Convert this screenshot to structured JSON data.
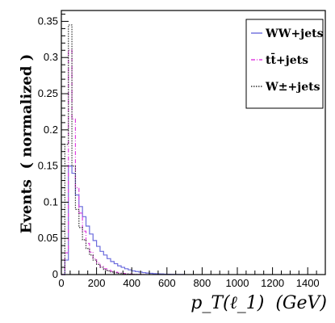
{
  "chart_data": {
    "type": "line",
    "xlabel": "p_T(ℓ_1)  (GeV)",
    "ylabel": "Events  ( normalized )",
    "xlim": [
      0,
      1500
    ],
    "ylim": [
      0,
      0.365
    ],
    "x_ticks": [
      "0",
      "200",
      "400",
      "600",
      "800",
      "1000",
      "1200",
      "1400"
    ],
    "y_ticks": [
      "0",
      "0.05",
      "0.1",
      "0.15",
      "0.2",
      "0.25",
      "0.3",
      "0.35"
    ],
    "grid": false,
    "legend_position": "top-right",
    "bin_width": 20,
    "bin_start": 0,
    "series": [
      {
        "name": "WW+jets",
        "color": "#6b6bdd",
        "dash": "solid",
        "values": [
          0.0,
          0.02,
          0.15,
          0.14,
          0.11,
          0.094,
          0.08,
          0.067,
          0.056,
          0.047,
          0.039,
          0.032,
          0.027,
          0.022,
          0.018,
          0.015,
          0.012,
          0.01,
          0.008,
          0.0065,
          0.005,
          0.0042,
          0.0034,
          0.0027,
          0.0021,
          0.0017,
          0.0013,
          0.001,
          0.0008,
          0.0006,
          0.0004,
          0.0003,
          0.0002,
          0.0001,
          0.0001
        ]
      },
      {
        "name": "tt̄+jets",
        "color": "#e040e0",
        "dash": "dashdot",
        "values": [
          0.0,
          0.03,
          0.31,
          0.215,
          0.12,
          0.085,
          0.06,
          0.043,
          0.031,
          0.022,
          0.016,
          0.011,
          0.008,
          0.006,
          0.0045,
          0.0032,
          0.0023,
          0.0016,
          0.0011,
          0.0008,
          0.0005,
          0.0003,
          0.0002,
          0.0001
        ]
      },
      {
        "name": "W±+jets",
        "color": "#333333",
        "dash": "dotted",
        "values": [
          0.0,
          0.18,
          0.345,
          0.15,
          0.09,
          0.065,
          0.048,
          0.036,
          0.027,
          0.02,
          0.014,
          0.01,
          0.007,
          0.005,
          0.0035,
          0.0024,
          0.0016,
          0.0011,
          0.0007,
          0.0004,
          0.0002,
          0.0001
        ]
      }
    ]
  }
}
